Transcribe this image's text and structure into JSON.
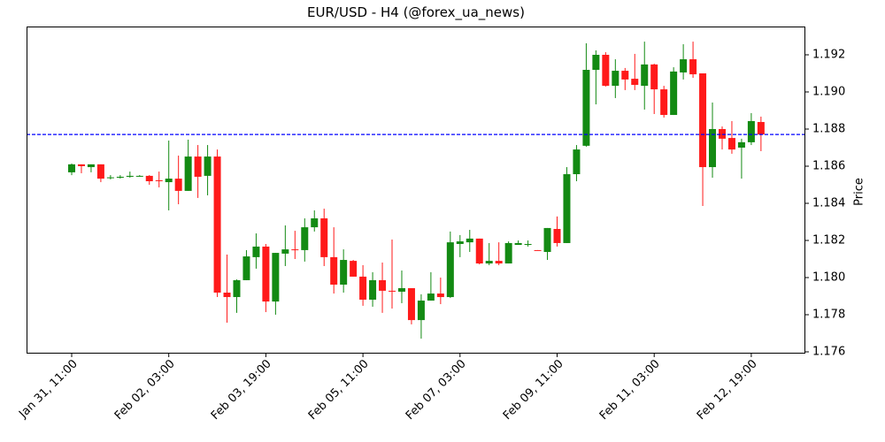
{
  "chart_data": {
    "type": "candlestick",
    "title": "EUR/USD - H4 (@forex_ua_news)",
    "xlabel": "",
    "ylabel": "Price",
    "ylim": [
      1.176,
      1.1935
    ],
    "y_ticks": [
      1.176,
      1.178,
      1.18,
      1.182,
      1.184,
      1.186,
      1.188,
      1.19,
      1.192
    ],
    "y_tick_labels": [
      "1.176",
      "1.178",
      "1.180",
      "1.182",
      "1.184",
      "1.186",
      "1.188",
      "1.190",
      "1.192"
    ],
    "x_ticks": [
      0,
      10,
      20,
      30,
      40,
      50,
      60,
      70
    ],
    "x_tick_labels": [
      "Jan 31, 11:00",
      "Feb 02, 03:00",
      "Feb 03, 19:00",
      "Feb 05, 11:00",
      "Feb 07, 03:00",
      "Feb 09, 11:00",
      "Feb 11, 03:00",
      "Feb 12, 19:00"
    ],
    "grid": false,
    "legend": null,
    "current_price_line": {
      "value": 1.18771,
      "style": "dashed",
      "color": "#0000ff"
    },
    "colors": {
      "up": "#138a13",
      "down": "#ff1a1a",
      "axis": "#000000"
    },
    "candles": [
      {
        "o": 1.18567,
        "h": 1.18614,
        "l": 1.18552,
        "c": 1.1861
      },
      {
        "o": 1.1861,
        "h": 1.1861,
        "l": 1.18562,
        "c": 1.186
      },
      {
        "o": 1.18595,
        "h": 1.1861,
        "l": 1.18567,
        "c": 1.1861
      },
      {
        "o": 1.1861,
        "h": 1.1861,
        "l": 1.18514,
        "c": 1.18533
      },
      {
        "o": 1.18536,
        "h": 1.18552,
        "l": 1.18529,
        "c": 1.1854
      },
      {
        "o": 1.18538,
        "h": 1.18552,
        "l": 1.18533,
        "c": 1.18543
      },
      {
        "o": 1.18543,
        "h": 1.18571,
        "l": 1.18538,
        "c": 1.18548
      },
      {
        "o": 1.18545,
        "h": 1.18552,
        "l": 1.18543,
        "c": 1.18548
      },
      {
        "o": 1.18548,
        "h": 1.18552,
        "l": 1.185,
        "c": 1.18519
      },
      {
        "o": 1.18524,
        "h": 1.18571,
        "l": 1.18486,
        "c": 1.18521
      },
      {
        "o": 1.18514,
        "h": 1.18738,
        "l": 1.18362,
        "c": 1.18533
      },
      {
        "o": 1.18533,
        "h": 1.18657,
        "l": 1.18395,
        "c": 1.18467
      },
      {
        "o": 1.18467,
        "h": 1.18743,
        "l": 1.18467,
        "c": 1.18652
      },
      {
        "o": 1.18652,
        "h": 1.18714,
        "l": 1.18429,
        "c": 1.18543
      },
      {
        "o": 1.18548,
        "h": 1.18714,
        "l": 1.18443,
        "c": 1.18652
      },
      {
        "o": 1.18652,
        "h": 1.1869,
        "l": 1.17895,
        "c": 1.17919
      },
      {
        "o": 1.17919,
        "h": 1.18124,
        "l": 1.17757,
        "c": 1.17895
      },
      {
        "o": 1.17895,
        "h": 1.1799,
        "l": 1.1781,
        "c": 1.17986
      },
      {
        "o": 1.17986,
        "h": 1.18148,
        "l": 1.17986,
        "c": 1.18114
      },
      {
        "o": 1.1811,
        "h": 1.18238,
        "l": 1.18048,
        "c": 1.18167
      },
      {
        "o": 1.18167,
        "h": 1.18181,
        "l": 1.17814,
        "c": 1.17871
      },
      {
        "o": 1.17871,
        "h": 1.18133,
        "l": 1.178,
        "c": 1.18133
      },
      {
        "o": 1.18129,
        "h": 1.18281,
        "l": 1.18062,
        "c": 1.18152
      },
      {
        "o": 1.18152,
        "h": 1.18252,
        "l": 1.181,
        "c": 1.1815
      },
      {
        "o": 1.18148,
        "h": 1.18319,
        "l": 1.18086,
        "c": 1.18271
      },
      {
        "o": 1.18271,
        "h": 1.18362,
        "l": 1.18248,
        "c": 1.18319
      },
      {
        "o": 1.18319,
        "h": 1.18371,
        "l": 1.18062,
        "c": 1.1811
      },
      {
        "o": 1.1811,
        "h": 1.18271,
        "l": 1.17914,
        "c": 1.17962
      },
      {
        "o": 1.17962,
        "h": 1.18152,
        "l": 1.17919,
        "c": 1.18095
      },
      {
        "o": 1.1809,
        "h": 1.18095,
        "l": 1.18005,
        "c": 1.18005
      },
      {
        "o": 1.18005,
        "h": 1.18067,
        "l": 1.17848,
        "c": 1.17881
      },
      {
        "o": 1.17881,
        "h": 1.18029,
        "l": 1.17843,
        "c": 1.17986
      },
      {
        "o": 1.17986,
        "h": 1.18081,
        "l": 1.1781,
        "c": 1.17929
      },
      {
        "o": 1.17929,
        "h": 1.18205,
        "l": 1.17833,
        "c": 1.17926
      },
      {
        "o": 1.17924,
        "h": 1.18038,
        "l": 1.17862,
        "c": 1.17943
      },
      {
        "o": 1.17943,
        "h": 1.17943,
        "l": 1.17748,
        "c": 1.17771
      },
      {
        "o": 1.17771,
        "h": 1.1791,
        "l": 1.17671,
        "c": 1.17876
      },
      {
        "o": 1.17876,
        "h": 1.18029,
        "l": 1.17876,
        "c": 1.17914
      },
      {
        "o": 1.17914,
        "h": 1.18,
        "l": 1.17857,
        "c": 1.17895
      },
      {
        "o": 1.17895,
        "h": 1.18248,
        "l": 1.1789,
        "c": 1.1819
      },
      {
        "o": 1.18181,
        "h": 1.18229,
        "l": 1.1811,
        "c": 1.18195
      },
      {
        "o": 1.1819,
        "h": 1.18257,
        "l": 1.18138,
        "c": 1.1821
      },
      {
        "o": 1.1821,
        "h": 1.1821,
        "l": 1.18071,
        "c": 1.18076
      },
      {
        "o": 1.18076,
        "h": 1.18186,
        "l": 1.18067,
        "c": 1.1809
      },
      {
        "o": 1.1809,
        "h": 1.1819,
        "l": 1.18067,
        "c": 1.18076
      },
      {
        "o": 1.18076,
        "h": 1.18195,
        "l": 1.18076,
        "c": 1.18186
      },
      {
        "o": 1.18176,
        "h": 1.182,
        "l": 1.18176,
        "c": 1.18186
      },
      {
        "o": 1.18179,
        "h": 1.182,
        "l": 1.18167,
        "c": 1.18181
      },
      {
        "o": 1.18148,
        "h": 1.18148,
        "l": 1.18145,
        "c": 1.18145
      },
      {
        "o": 1.18138,
        "h": 1.18267,
        "l": 1.18095,
        "c": 1.18267
      },
      {
        "o": 1.18262,
        "h": 1.18329,
        "l": 1.18167,
        "c": 1.18186
      },
      {
        "o": 1.18186,
        "h": 1.18595,
        "l": 1.18186,
        "c": 1.18557
      },
      {
        "o": 1.18557,
        "h": 1.18714,
        "l": 1.18519,
        "c": 1.1869
      },
      {
        "o": 1.1871,
        "h": 1.19262,
        "l": 1.18705,
        "c": 1.19119
      },
      {
        "o": 1.19119,
        "h": 1.19224,
        "l": 1.18933,
        "c": 1.192
      },
      {
        "o": 1.192,
        "h": 1.19214,
        "l": 1.19029,
        "c": 1.19033
      },
      {
        "o": 1.19033,
        "h": 1.19176,
        "l": 1.18967,
        "c": 1.19114
      },
      {
        "o": 1.19114,
        "h": 1.19129,
        "l": 1.1901,
        "c": 1.19067
      },
      {
        "o": 1.19071,
        "h": 1.19205,
        "l": 1.1901,
        "c": 1.19038
      },
      {
        "o": 1.19033,
        "h": 1.19271,
        "l": 1.18905,
        "c": 1.19148
      },
      {
        "o": 1.19148,
        "h": 1.19152,
        "l": 1.18881,
        "c": 1.19014
      },
      {
        "o": 1.19014,
        "h": 1.19033,
        "l": 1.18862,
        "c": 1.18876
      },
      {
        "o": 1.18876,
        "h": 1.19133,
        "l": 1.18876,
        "c": 1.1911
      },
      {
        "o": 1.19105,
        "h": 1.19257,
        "l": 1.19067,
        "c": 1.19176
      },
      {
        "o": 1.19176,
        "h": 1.19271,
        "l": 1.19076,
        "c": 1.19095
      },
      {
        "o": 1.191,
        "h": 1.191,
        "l": 1.18386,
        "c": 1.18595
      },
      {
        "o": 1.18595,
        "h": 1.18943,
        "l": 1.18538,
        "c": 1.188
      },
      {
        "o": 1.188,
        "h": 1.18814,
        "l": 1.1869,
        "c": 1.18748
      },
      {
        "o": 1.18752,
        "h": 1.18843,
        "l": 1.18667,
        "c": 1.1869
      },
      {
        "o": 1.187,
        "h": 1.18748,
        "l": 1.18533,
        "c": 1.18729
      },
      {
        "o": 1.18729,
        "h": 1.18886,
        "l": 1.18714,
        "c": 1.18843
      },
      {
        "o": 1.18838,
        "h": 1.18867,
        "l": 1.18681,
        "c": 1.18771
      }
    ]
  }
}
